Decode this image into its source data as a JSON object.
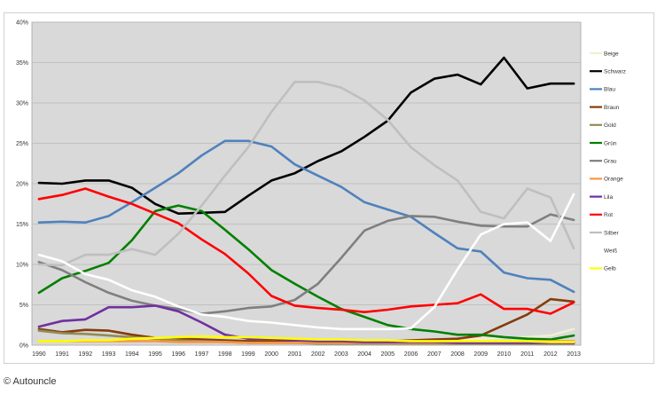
{
  "credit": "© Autouncle",
  "chart_data": {
    "type": "line",
    "title": "",
    "xlabel": "",
    "ylabel": "",
    "x": [
      1990,
      1991,
      1992,
      1993,
      1994,
      1995,
      1996,
      1997,
      1998,
      1999,
      2000,
      2001,
      2002,
      2003,
      2004,
      2005,
      2006,
      2007,
      2008,
      2009,
      2010,
      2011,
      2012,
      2013
    ],
    "ylim": [
      0,
      40
    ],
    "y_ticks": [
      "0%",
      "5%",
      "10%",
      "15%",
      "20%",
      "25%",
      "30%",
      "35%",
      "40%"
    ],
    "y_tick_values": [
      0,
      5,
      10,
      15,
      20,
      25,
      30,
      35,
      40
    ],
    "plot_background": "#d9d9d9",
    "grid": true,
    "legend_position": "right",
    "series": [
      {
        "name": "Beige",
        "color": "#f2efcf",
        "values": [
          0.5,
          0.5,
          0.5,
          0.5,
          0.5,
          0.5,
          0.5,
          0.5,
          0.5,
          0.5,
          0.5,
          0.5,
          0.5,
          0.5,
          0.5,
          0.5,
          0.6,
          0.6,
          0.7,
          0.8,
          0.9,
          1.0,
          1.2,
          2.0
        ]
      },
      {
        "name": "Schwarz",
        "color": "#000000",
        "values": [
          20.1,
          20.0,
          20.4,
          20.4,
          19.5,
          17.5,
          16.3,
          16.4,
          16.5,
          18.5,
          20.4,
          21.3,
          22.8,
          24.0,
          25.8,
          27.8,
          31.3,
          33.0,
          33.5,
          32.3,
          35.6,
          31.8,
          32.4,
          32.4
        ]
      },
      {
        "name": "Blau",
        "color": "#4f81bd",
        "values": [
          15.2,
          15.3,
          15.2,
          16.0,
          17.7,
          19.5,
          21.3,
          23.5,
          25.3,
          25.3,
          24.6,
          22.4,
          21.0,
          19.6,
          17.7,
          16.8,
          15.9,
          13.9,
          12.0,
          11.6,
          9.0,
          8.3,
          8.1,
          6.6
        ]
      },
      {
        "name": "Braun",
        "color": "#843c0c",
        "values": [
          2.0,
          1.6,
          1.9,
          1.8,
          1.3,
          0.9,
          0.8,
          0.7,
          0.6,
          0.5,
          0.5,
          0.4,
          0.4,
          0.4,
          0.4,
          0.5,
          0.6,
          0.7,
          0.8,
          1.2,
          2.5,
          3.8,
          5.7,
          5.4
        ]
      },
      {
        "name": "Gold",
        "color": "#948a54",
        "values": [
          1.8,
          1.5,
          1.4,
          1.2,
          1.0,
          0.8,
          0.6,
          0.5,
          0.4,
          0.3,
          0.3,
          0.3,
          0.2,
          0.2,
          0.2,
          0.2,
          0.2,
          0.2,
          0.2,
          0.2,
          0.2,
          0.2,
          0.2,
          0.2
        ]
      },
      {
        "name": "Grün",
        "color": "#008000",
        "values": [
          6.5,
          8.3,
          9.2,
          10.2,
          13.0,
          16.6,
          17.3,
          16.6,
          14.3,
          11.9,
          9.3,
          7.6,
          6.0,
          4.5,
          3.5,
          2.5,
          2.0,
          1.7,
          1.3,
          1.3,
          1.0,
          0.8,
          0.7,
          1.2
        ]
      },
      {
        "name": "Grau",
        "color": "#7f7f7f",
        "values": [
          10.3,
          9.3,
          7.8,
          6.5,
          5.5,
          4.9,
          4.5,
          3.9,
          4.2,
          4.6,
          4.8,
          5.6,
          7.6,
          10.8,
          14.2,
          15.4,
          16.0,
          15.9,
          15.3,
          14.8,
          14.7,
          14.7,
          16.2,
          15.5
        ]
      },
      {
        "name": "Orange",
        "color": "#f79646",
        "values": [
          0.5,
          0.5,
          0.5,
          0.5,
          0.5,
          0.5,
          0.4,
          0.4,
          0.4,
          0.3,
          0.3,
          0.3,
          0.3,
          0.3,
          0.3,
          0.3,
          0.3,
          0.3,
          0.3,
          0.4,
          0.4,
          0.5,
          0.5,
          0.5
        ]
      },
      {
        "name": "Lila",
        "color": "#7030a0",
        "values": [
          2.3,
          3.0,
          3.2,
          4.7,
          4.7,
          4.9,
          4.2,
          2.8,
          1.3,
          0.8,
          0.8,
          0.6,
          0.5,
          0.5,
          0.4,
          0.4,
          0.4,
          0.4,
          0.3,
          0.3,
          0.3,
          0.3,
          0.3,
          0.3
        ]
      },
      {
        "name": "Rot",
        "color": "#ff0000",
        "values": [
          18.1,
          18.6,
          19.4,
          18.4,
          17.5,
          16.3,
          15.1,
          13.1,
          11.3,
          8.9,
          6.1,
          4.9,
          4.6,
          4.4,
          4.1,
          4.4,
          4.8,
          5.0,
          5.2,
          6.3,
          4.5,
          4.5,
          3.9,
          5.3
        ]
      },
      {
        "name": "Silber",
        "color": "#bfbfbf",
        "values": [
          10.0,
          9.9,
          11.2,
          11.2,
          11.9,
          11.2,
          13.8,
          17.3,
          21.0,
          24.5,
          28.9,
          32.6,
          32.6,
          31.9,
          30.3,
          27.9,
          24.5,
          22.3,
          20.4,
          16.5,
          15.7,
          19.4,
          18.3,
          12.0
        ]
      },
      {
        "name": "Weiß",
        "color": "#ffffff",
        "values": [
          11.2,
          10.4,
          8.8,
          8.1,
          6.8,
          6.0,
          4.8,
          3.8,
          3.5,
          3.0,
          2.8,
          2.5,
          2.2,
          2.0,
          2.0,
          2.0,
          2.1,
          4.7,
          9.4,
          13.7,
          15.0,
          15.2,
          12.9,
          18.7
        ]
      },
      {
        "name": "Gelb",
        "color": "#ffff00",
        "values": [
          0.5,
          0.5,
          0.6,
          0.6,
          0.8,
          0.9,
          1.0,
          1.1,
          1.0,
          1.0,
          0.9,
          0.8,
          0.7,
          0.7,
          0.6,
          0.6,
          0.5,
          0.5,
          0.5,
          0.5,
          0.5,
          0.5,
          0.4,
          0.4
        ]
      }
    ]
  }
}
